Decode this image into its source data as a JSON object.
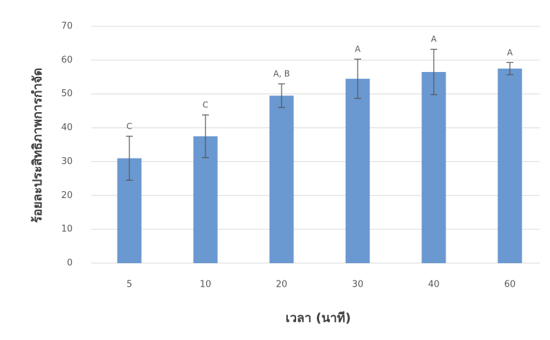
{
  "chart_data": {
    "type": "bar",
    "x_label": "เวลา (นาที)",
    "y_label": "ร้อยละประสิทธิภาพการกำจัด",
    "categories": [
      "5",
      "10",
      "20",
      "30",
      "40",
      "60"
    ],
    "values": [
      31,
      37.5,
      49.5,
      54.5,
      56.5,
      57.5
    ],
    "errors": [
      6.5,
      6.3,
      3.5,
      5.8,
      6.7,
      1.8
    ],
    "letters": [
      "C",
      "C",
      "A, B",
      "A",
      "A",
      "A"
    ],
    "color": "#6a98d0",
    "ylim": [
      0,
      70
    ],
    "yticks": [
      0,
      10,
      20,
      30,
      40,
      50,
      60,
      70
    ],
    "grid": true
  }
}
